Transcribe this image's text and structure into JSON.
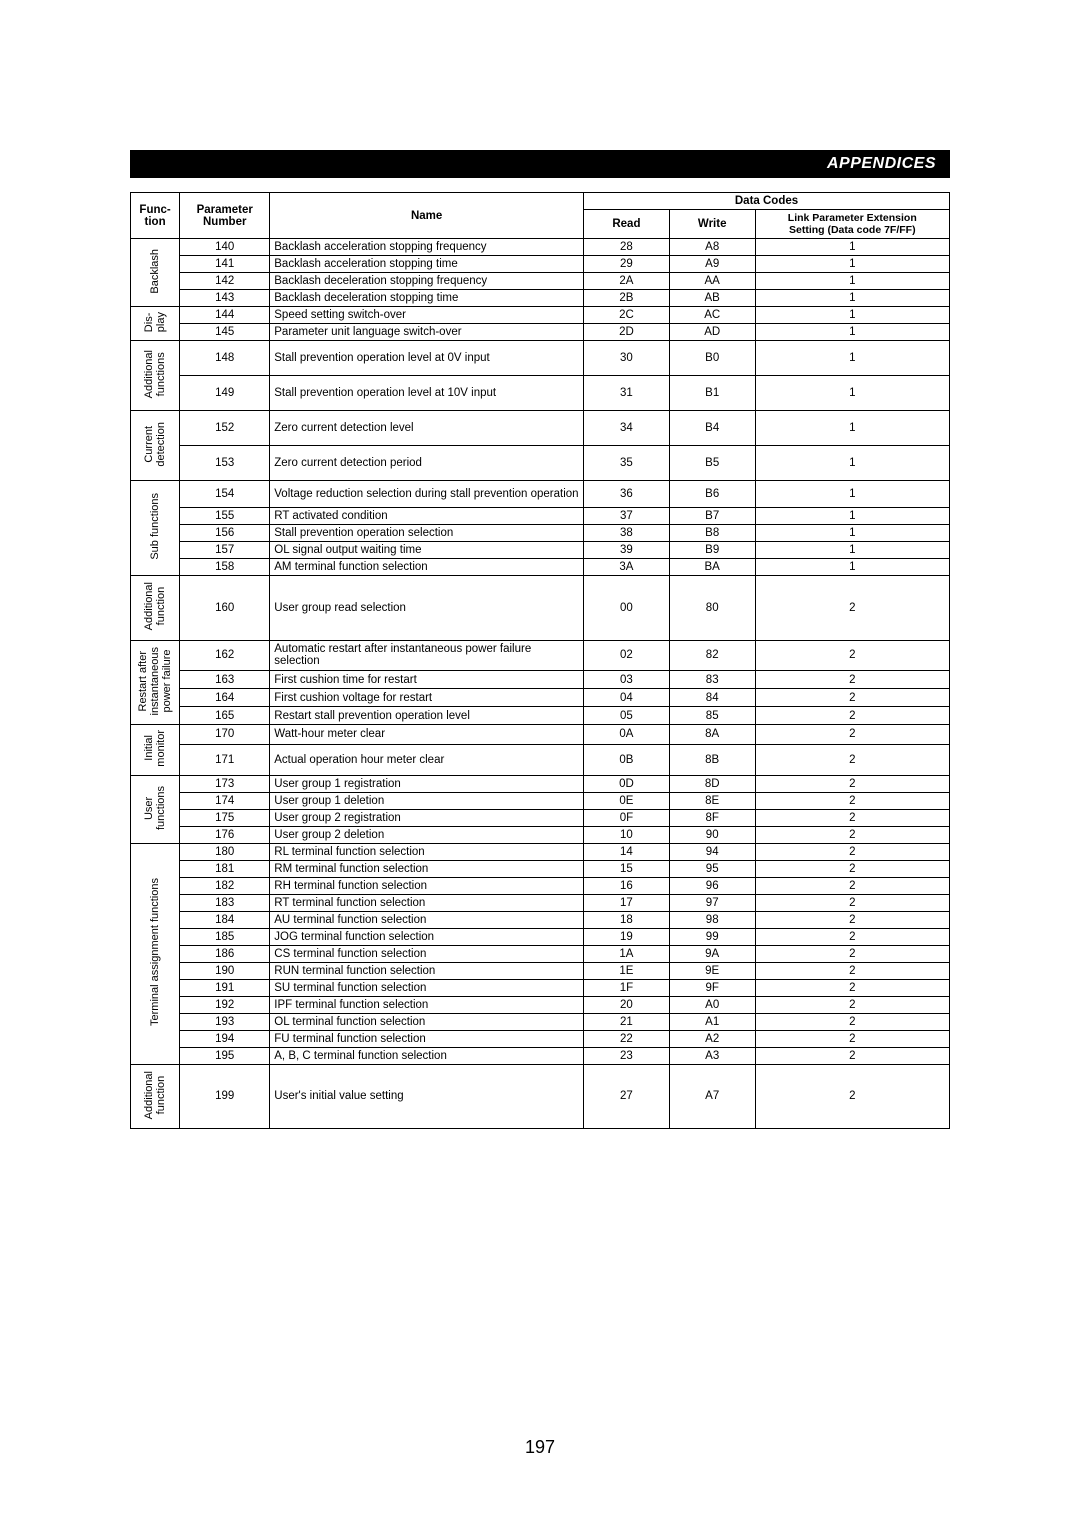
{
  "header": "APPENDICES",
  "page_number": "197",
  "columns": {
    "function": "Func-\ntion",
    "parameter_number": "Parameter\nNumber",
    "name": "Name",
    "data_codes": "Data Codes",
    "read": "Read",
    "write": "Write",
    "ext": "Link Parameter Extension\nSetting (Data code 7F/FF)"
  },
  "groups": [
    {
      "cat": "Backlash",
      "rows": [
        {
          "p": "140",
          "n": "Backlash acceleration stopping frequency",
          "r": "28",
          "w": "A8",
          "e": "1",
          "cls": "norm"
        },
        {
          "p": "141",
          "n": "Backlash acceleration stopping time",
          "r": "29",
          "w": "A9",
          "e": "1",
          "cls": "norm"
        },
        {
          "p": "142",
          "n": "Backlash deceleration stopping frequency",
          "r": "2A",
          "w": "AA",
          "e": "1",
          "cls": "norm"
        },
        {
          "p": "143",
          "n": "Backlash deceleration stopping time",
          "r": "2B",
          "w": "AB",
          "e": "1",
          "cls": "norm"
        }
      ]
    },
    {
      "cat": "Dis-\nplay",
      "rows": [
        {
          "p": "144",
          "n": "Speed setting switch-over",
          "r": "2C",
          "w": "AC",
          "e": "1",
          "cls": "norm"
        },
        {
          "p": "145",
          "n": "Parameter unit language switch-over",
          "r": "2D",
          "w": "AD",
          "e": "1",
          "cls": "norm"
        }
      ]
    },
    {
      "cat": "Additional\nfunctions",
      "rows": [
        {
          "p": "148",
          "n": "Stall prevention operation level at 0V input",
          "r": "30",
          "w": "B0",
          "e": "1",
          "cls": "tall"
        },
        {
          "p": "149",
          "n": "Stall prevention operation level at 10V input",
          "r": "31",
          "w": "B1",
          "e": "1",
          "cls": "tall"
        }
      ]
    },
    {
      "cat": "Current\ndetection",
      "rows": [
        {
          "p": "152",
          "n": "Zero current detection level",
          "r": "34",
          "w": "B4",
          "e": "1",
          "cls": "tall"
        },
        {
          "p": "153",
          "n": "Zero current detection period",
          "r": "35",
          "w": "B5",
          "e": "1",
          "cls": "tall"
        }
      ]
    },
    {
      "cat": "Sub functions",
      "rows": [
        {
          "p": "154",
          "n": "Voltage reduction selection during stall prevention operation",
          "r": "36",
          "w": "B6",
          "e": "1",
          "cls": "med"
        },
        {
          "p": "155",
          "n": "RT activated condition",
          "r": "37",
          "w": "B7",
          "e": "1",
          "cls": "norm"
        },
        {
          "p": "156",
          "n": "Stall prevention operation selection",
          "r": "38",
          "w": "B8",
          "e": "1",
          "cls": "norm"
        },
        {
          "p": "157",
          "n": "OL signal output waiting time",
          "r": "39",
          "w": "B9",
          "e": "1",
          "cls": "norm"
        },
        {
          "p": "158",
          "n": "AM terminal function selection",
          "r": "3A",
          "w": "BA",
          "e": "1",
          "cls": "norm"
        }
      ]
    },
    {
      "cat": "Additional\nfunction",
      "rows": [
        {
          "p": "160",
          "n": "User group read selection",
          "r": "00",
          "w": "80",
          "e": "2",
          "cls": "xtall"
        }
      ]
    },
    {
      "cat": "Restart after\ninstantaneous\npower failure",
      "rows": [
        {
          "p": "162",
          "n": "Automatic restart after instantaneous power failure selection",
          "r": "02",
          "w": "82",
          "e": "2",
          "cls": "med"
        },
        {
          "p": "163",
          "n": "First cushion time for restart",
          "r": "03",
          "w": "83",
          "e": "2",
          "cls": "norm"
        },
        {
          "p": "164",
          "n": "First cushion voltage for restart",
          "r": "04",
          "w": "84",
          "e": "2",
          "cls": "norm"
        },
        {
          "p": "165",
          "n": "Restart stall prevention operation level",
          "r": "05",
          "w": "85",
          "e": "2",
          "cls": "norm"
        }
      ]
    },
    {
      "cat": "Initial\nmonitor",
      "rows": [
        {
          "p": "170",
          "n": "Watt-hour meter clear",
          "r": "0A",
          "w": "8A",
          "e": "2",
          "cls": "norm"
        },
        {
          "p": "171",
          "n": "Actual operation hour meter clear",
          "r": "0B",
          "w": "8B",
          "e": "2",
          "cls": "med"
        }
      ]
    },
    {
      "cat": "User\nfunctions",
      "rows": [
        {
          "p": "173",
          "n": "User group 1 registration",
          "r": "0D",
          "w": "8D",
          "e": "2",
          "cls": "norm"
        },
        {
          "p": "174",
          "n": "User group 1 deletion",
          "r": "0E",
          "w": "8E",
          "e": "2",
          "cls": "norm"
        },
        {
          "p": "175",
          "n": "User group 2 registration",
          "r": "0F",
          "w": "8F",
          "e": "2",
          "cls": "norm"
        },
        {
          "p": "176",
          "n": "User group 2 deletion",
          "r": "10",
          "w": "90",
          "e": "2",
          "cls": "norm"
        }
      ]
    },
    {
      "cat": "Terminal assignment functions",
      "rows": [
        {
          "p": "180",
          "n": "RL terminal function selection",
          "r": "14",
          "w": "94",
          "e": "2",
          "cls": "norm"
        },
        {
          "p": "181",
          "n": "RM terminal function selection",
          "r": "15",
          "w": "95",
          "e": "2",
          "cls": "norm"
        },
        {
          "p": "182",
          "n": "RH terminal function selection",
          "r": "16",
          "w": "96",
          "e": "2",
          "cls": "norm"
        },
        {
          "p": "183",
          "n": "RT terminal function selection",
          "r": "17",
          "w": "97",
          "e": "2",
          "cls": "norm"
        },
        {
          "p": "184",
          "n": "AU terminal function selection",
          "r": "18",
          "w": "98",
          "e": "2",
          "cls": "norm"
        },
        {
          "p": "185",
          "n": "JOG terminal function selection",
          "r": "19",
          "w": "99",
          "e": "2",
          "cls": "norm"
        },
        {
          "p": "186",
          "n": "CS terminal function selection",
          "r": "1A",
          "w": "9A",
          "e": "2",
          "cls": "norm"
        },
        {
          "p": "190",
          "n": "RUN terminal function selection",
          "r": "1E",
          "w": "9E",
          "e": "2",
          "cls": "norm"
        },
        {
          "p": "191",
          "n": "SU terminal function selection",
          "r": "1F",
          "w": "9F",
          "e": "2",
          "cls": "norm"
        },
        {
          "p": "192",
          "n": "IPF terminal function selection",
          "r": "20",
          "w": "A0",
          "e": "2",
          "cls": "norm"
        },
        {
          "p": "193",
          "n": "OL terminal function selection",
          "r": "21",
          "w": "A1",
          "e": "2",
          "cls": "norm"
        },
        {
          "p": "194",
          "n": "FU terminal function selection",
          "r": "22",
          "w": "A2",
          "e": "2",
          "cls": "norm"
        },
        {
          "p": "195",
          "n": "A, B, C terminal function selection",
          "r": "23",
          "w": "A3",
          "e": "2",
          "cls": "norm"
        }
      ]
    },
    {
      "cat": "Additional\nfunction",
      "rows": [
        {
          "p": "199",
          "n": "User's initial value setting",
          "r": "27",
          "w": "A7",
          "e": "2",
          "cls": "xtall"
        }
      ]
    }
  ]
}
